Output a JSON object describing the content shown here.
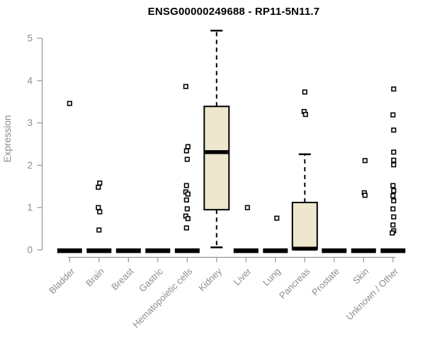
{
  "chart_data": {
    "type": "boxplot",
    "title": "ENSG00000249688 - RP11-5N11.7",
    "ylabel": "Expression",
    "ylim": [
      0,
      5.3
    ],
    "yticks": [
      0,
      1,
      2,
      3,
      4,
      5
    ],
    "grid": false,
    "legend": "none",
    "box_fill": "#EDE7CD",
    "box_border": "#000000",
    "axis_color": "#949494",
    "label_color": "#8C8C8C",
    "title_color": "#000000",
    "categories": [
      {
        "label": "Bladder",
        "lo": 0,
        "q1": 0,
        "median": 0,
        "q3": 0,
        "hi": 0,
        "outliers": [
          {
            "v": 3.46,
            "dx": 0
          }
        ]
      },
      {
        "label": "Brain",
        "lo": 0,
        "q1": 0,
        "median": 0,
        "q3": 0,
        "hi": 0,
        "outliers": [
          {
            "v": 1.58,
            "dx": 1
          },
          {
            "v": 1.48,
            "dx": -1
          },
          {
            "v": 1.0,
            "dx": -1
          },
          {
            "v": 0.9,
            "dx": 1
          },
          {
            "v": 0.47,
            "dx": 0
          }
        ]
      },
      {
        "label": "Breast",
        "lo": 0,
        "q1": 0,
        "median": 0,
        "q3": 0,
        "hi": 0,
        "outliers": []
      },
      {
        "label": "Gastric",
        "lo": 0,
        "q1": 0,
        "median": 0,
        "q3": 0,
        "hi": 0,
        "outliers": []
      },
      {
        "label": "Hematopoietic cells",
        "lo": 0,
        "q1": 0,
        "median": 0,
        "q3": 0,
        "hi": 0,
        "outliers": [
          {
            "v": 3.86,
            "dx": -2
          },
          {
            "v": 2.44,
            "dx": 1
          },
          {
            "v": 2.34,
            "dx": -1
          },
          {
            "v": 2.14,
            "dx": 0
          },
          {
            "v": 1.52,
            "dx": -1
          },
          {
            "v": 1.37,
            "dx": -2
          },
          {
            "v": 1.32,
            "dx": 1
          },
          {
            "v": 1.18,
            "dx": -1
          },
          {
            "v": 0.97,
            "dx": 0
          },
          {
            "v": 0.8,
            "dx": -2
          },
          {
            "v": 0.74,
            "dx": 1
          },
          {
            "v": 0.52,
            "dx": -1
          }
        ]
      },
      {
        "label": "Kidney",
        "lo": 0.06,
        "q1": 0.95,
        "median": 2.31,
        "q3": 3.39,
        "hi": 5.18,
        "outliers": []
      },
      {
        "label": "Liver",
        "lo": 0,
        "q1": 0,
        "median": 0,
        "q3": 0,
        "hi": 0,
        "outliers": [
          {
            "v": 1.0,
            "dx": 2
          }
        ]
      },
      {
        "label": "Lung",
        "lo": 0,
        "q1": 0,
        "median": 0,
        "q3": 0,
        "hi": 0,
        "outliers": [
          {
            "v": 0.75,
            "dx": 2
          }
        ]
      },
      {
        "label": "Pancreas",
        "lo": 0.02,
        "q1": 0.02,
        "median": 0.03,
        "q3": 1.12,
        "hi": 2.26,
        "outliers": [
          {
            "v": 3.73,
            "dx": 0
          },
          {
            "v": 3.27,
            "dx": -1
          },
          {
            "v": 3.2,
            "dx": 1
          }
        ]
      },
      {
        "label": "Prostate",
        "lo": 0,
        "q1": 0,
        "median": 0,
        "q3": 0,
        "hi": 0,
        "outliers": []
      },
      {
        "label": "Skin",
        "lo": 0,
        "q1": 0,
        "median": 0,
        "q3": 0,
        "hi": 0,
        "outliers": [
          {
            "v": 2.11,
            "dx": 2
          },
          {
            "v": 1.35,
            "dx": 1
          },
          {
            "v": 1.29,
            "dx": 2
          }
        ]
      },
      {
        "label": "Unknown / Other",
        "lo": 0,
        "q1": 0,
        "median": 0,
        "q3": 0,
        "hi": 0,
        "outliers": [
          {
            "v": 3.8,
            "dx": 1
          },
          {
            "v": 3.19,
            "dx": 0
          },
          {
            "v": 2.83,
            "dx": 1
          },
          {
            "v": 2.31,
            "dx": 1
          },
          {
            "v": 2.12,
            "dx": 1
          },
          {
            "v": 2.01,
            "dx": 1
          },
          {
            "v": 1.52,
            "dx": 0
          },
          {
            "v": 1.4,
            "dx": 1
          },
          {
            "v": 1.28,
            "dx": 0
          },
          {
            "v": 1.16,
            "dx": 1
          },
          {
            "v": 0.97,
            "dx": 0
          },
          {
            "v": 0.78,
            "dx": 1
          },
          {
            "v": 0.59,
            "dx": 0
          },
          {
            "v": 0.45,
            "dx": 1
          },
          {
            "v": 0.4,
            "dx": -1
          }
        ]
      }
    ]
  }
}
